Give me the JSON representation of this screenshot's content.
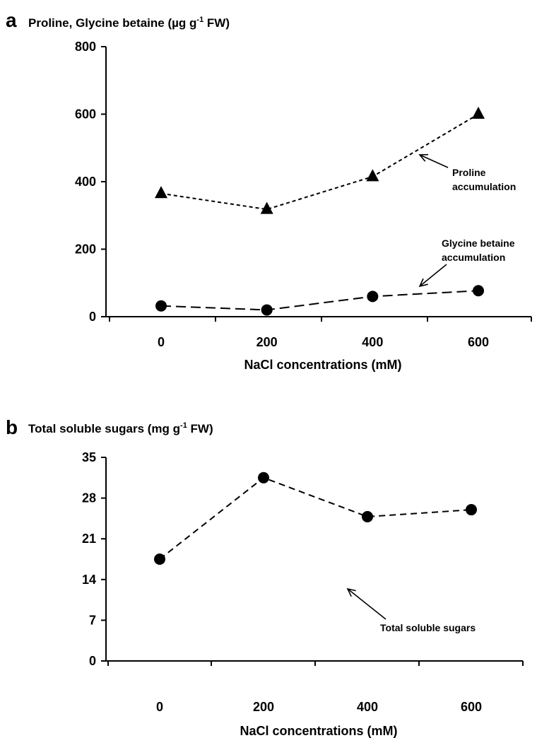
{
  "chart_data": [
    {
      "type": "line",
      "panel": "a",
      "title_parts": [
        "Proline, Glycine betaine (µg g",
        "-1",
        " FW)"
      ],
      "xlabel": "NaCl concentrations (mM)",
      "ylabel": "",
      "x": [
        0,
        200,
        400,
        600
      ],
      "xticks": [
        "0",
        "200",
        "400",
        "600"
      ],
      "yticks": [
        "0",
        "200",
        "400",
        "600",
        "800"
      ],
      "ylim": [
        0,
        800
      ],
      "grid": false,
      "series": [
        {
          "values": [
            365,
            318,
            415,
            600
          ],
          "marker": "triangle",
          "dash": "dotted"
        },
        {
          "values": [
            32,
            20,
            60,
            77
          ],
          "marker": "circle",
          "dash": "dashed"
        }
      ],
      "annotations": [
        {
          "lines": [
            "Proline",
            "accumulation"
          ]
        },
        {
          "lines": [
            "Glycine betaine",
            "accumulation"
          ]
        }
      ]
    },
    {
      "type": "line",
      "panel": "b",
      "title_parts": [
        "Total soluble sugars (mg g",
        "-1",
        "  FW)"
      ],
      "xlabel": "NaCl concentrations (mM)",
      "ylabel": "",
      "x": [
        0,
        200,
        400,
        600
      ],
      "xticks": [
        "0",
        "200",
        "400",
        "600"
      ],
      "yticks": [
        "0",
        "7",
        "14",
        "21",
        "28",
        "35"
      ],
      "ylim": [
        0,
        35
      ],
      "grid": false,
      "series": [
        {
          "values": [
            17.5,
            31.5,
            24.8,
            26
          ],
          "marker": "circle",
          "dash": "dashed"
        }
      ],
      "annotations": [
        {
          "lines": [
            "Total soluble sugars"
          ]
        }
      ]
    }
  ]
}
